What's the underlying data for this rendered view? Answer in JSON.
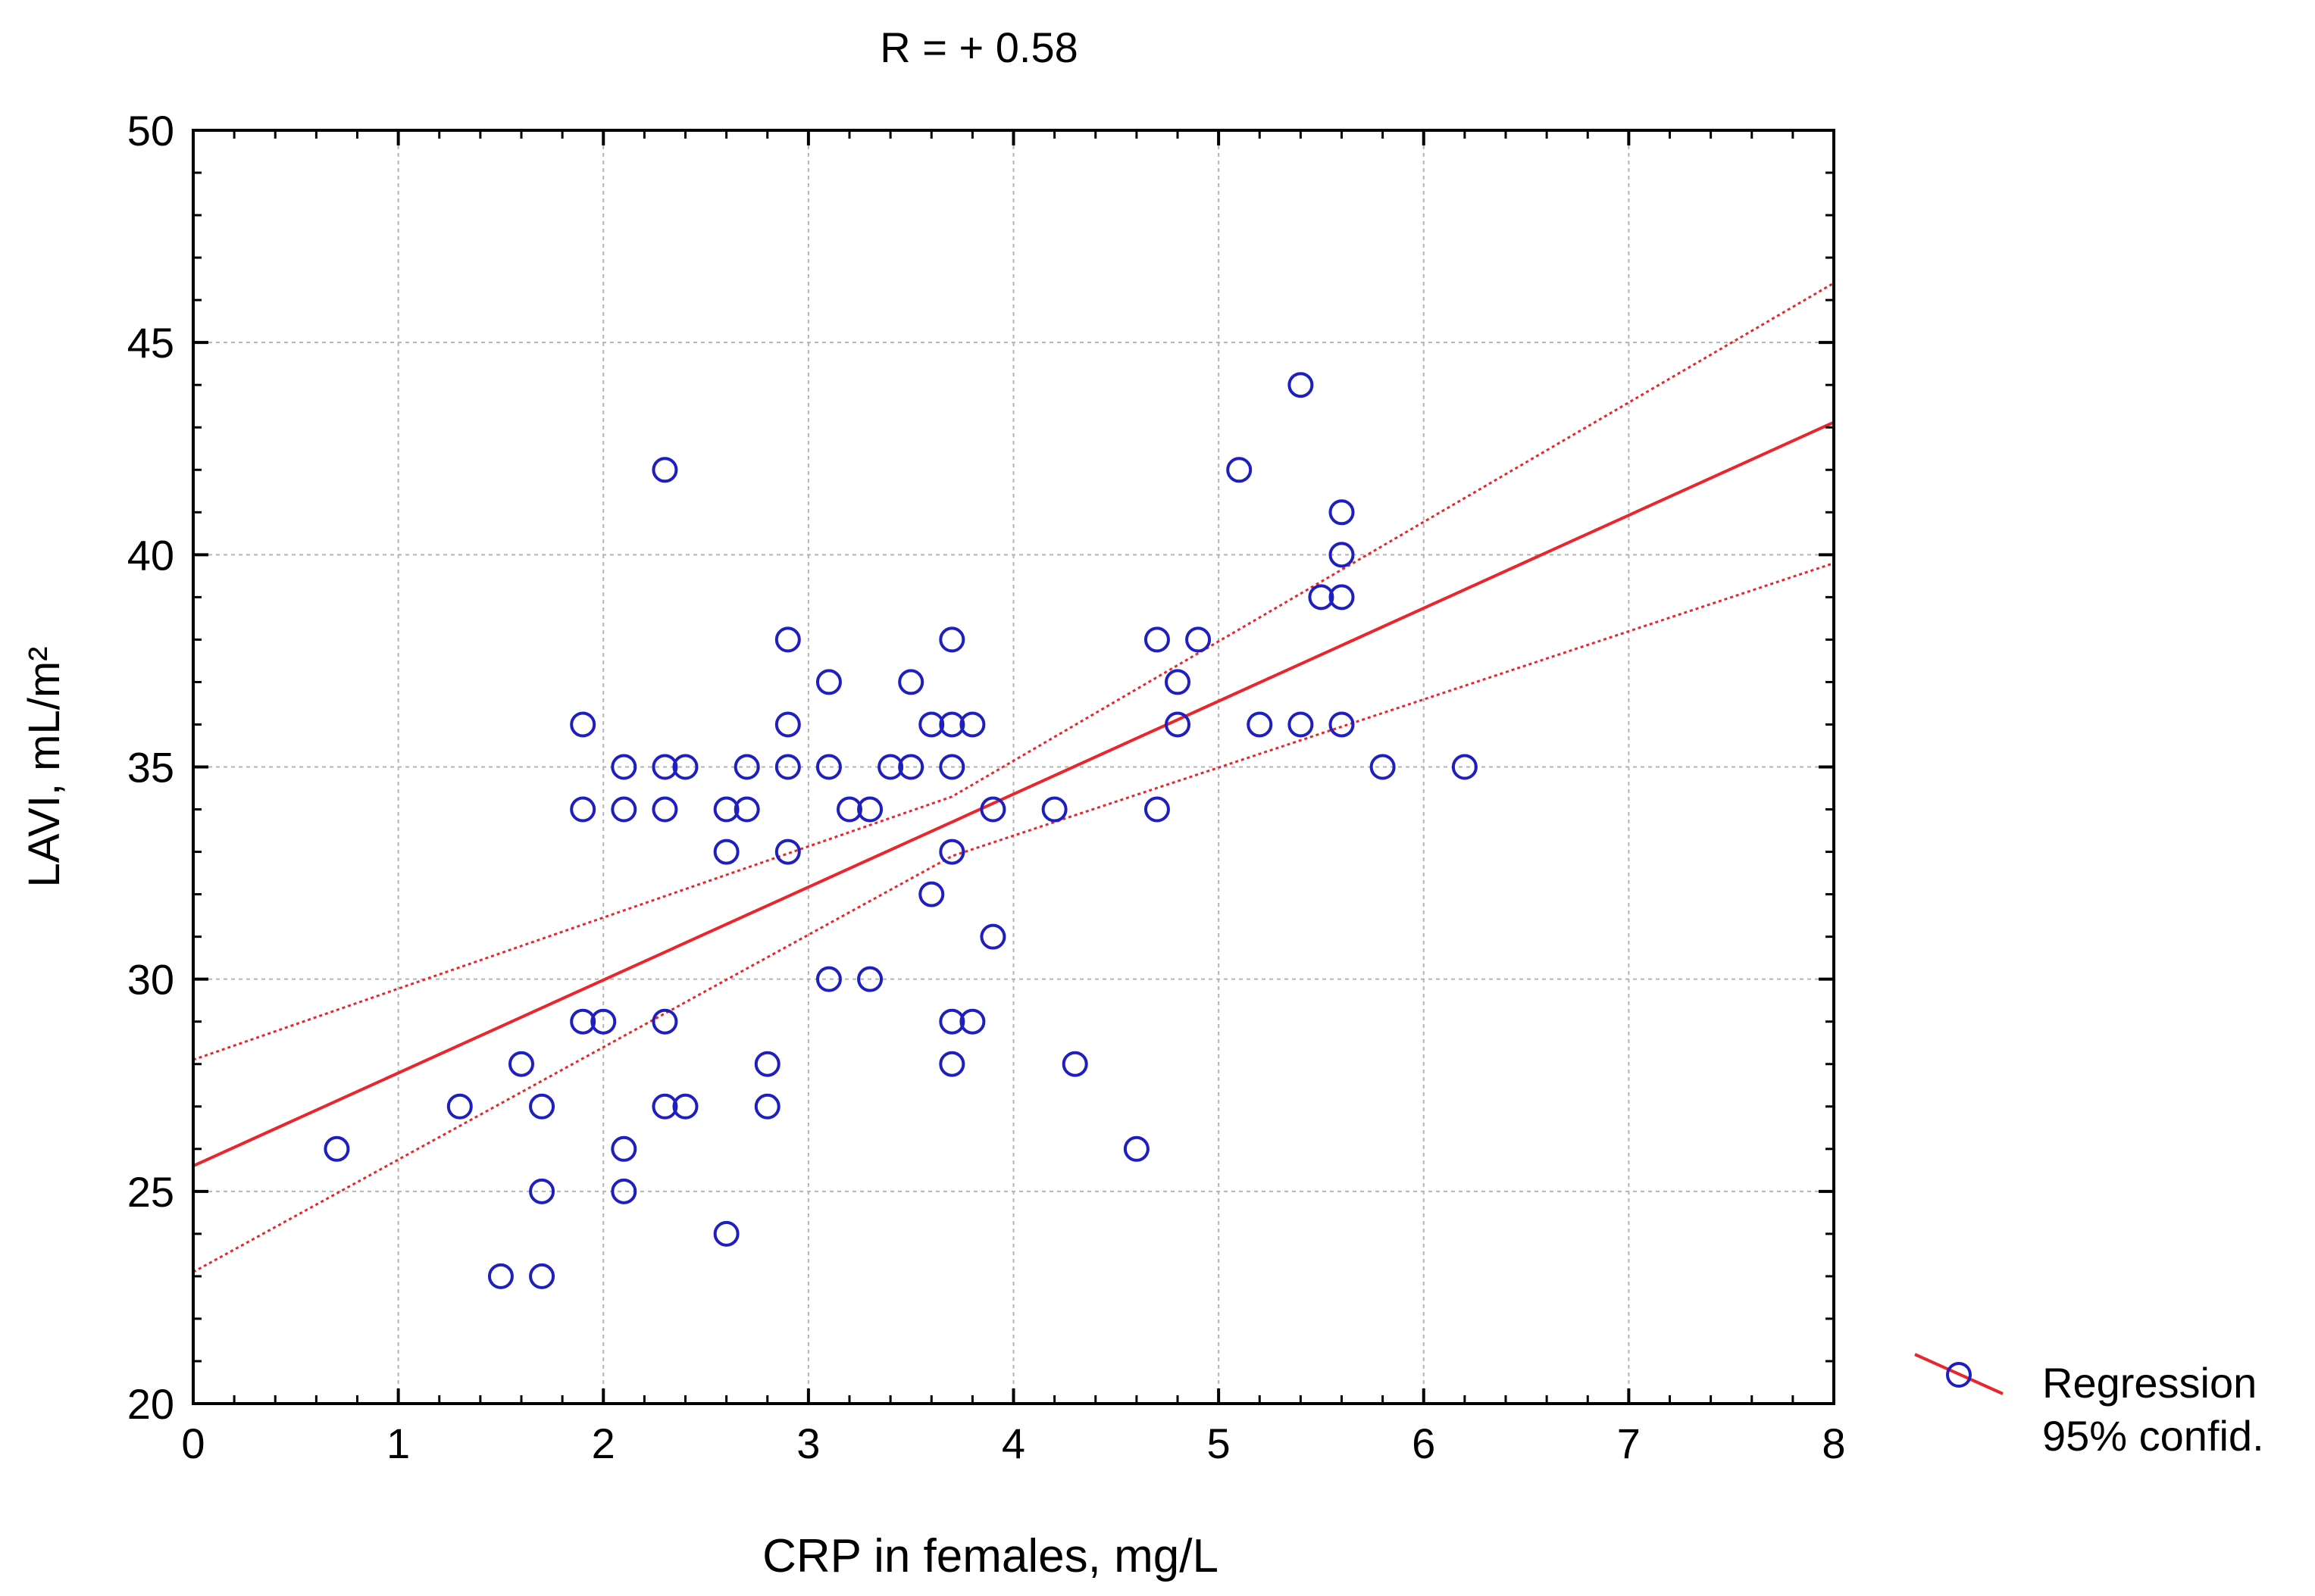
{
  "chart_data": {
    "type": "scatter",
    "title": "R = + 0.58",
    "xlabel": "CRP in females, mg/L",
    "ylabel": "LAVI, mL/m²",
    "xlim": [
      0,
      8
    ],
    "ylim": [
      20,
      50
    ],
    "xticks": [
      "0",
      "1",
      "2",
      "3",
      "4",
      "5",
      "6",
      "7",
      "8"
    ],
    "yticks": [
      "20",
      "25",
      "30",
      "35",
      "40",
      "45",
      "50"
    ],
    "grid": true,
    "legend_position": "right",
    "legend": [
      "Regression",
      "95% confid."
    ],
    "points": [
      {
        "x": 0.7,
        "y": 26
      },
      {
        "x": 1.3,
        "y": 27
      },
      {
        "x": 1.5,
        "y": 23
      },
      {
        "x": 1.6,
        "y": 28
      },
      {
        "x": 1.7,
        "y": 27
      },
      {
        "x": 1.7,
        "y": 25
      },
      {
        "x": 1.7,
        "y": 23
      },
      {
        "x": 1.9,
        "y": 36
      },
      {
        "x": 1.9,
        "y": 34
      },
      {
        "x": 1.9,
        "y": 29
      },
      {
        "x": 2.0,
        "y": 29
      },
      {
        "x": 2.1,
        "y": 35
      },
      {
        "x": 2.1,
        "y": 34
      },
      {
        "x": 2.1,
        "y": 26
      },
      {
        "x": 2.1,
        "y": 25
      },
      {
        "x": 2.3,
        "y": 42
      },
      {
        "x": 2.3,
        "y": 35
      },
      {
        "x": 2.3,
        "y": 34
      },
      {
        "x": 2.3,
        "y": 29
      },
      {
        "x": 2.3,
        "y": 27
      },
      {
        "x": 2.4,
        "y": 35
      },
      {
        "x": 2.4,
        "y": 27
      },
      {
        "x": 2.6,
        "y": 34
      },
      {
        "x": 2.6,
        "y": 33
      },
      {
        "x": 2.6,
        "y": 24
      },
      {
        "x": 2.7,
        "y": 35
      },
      {
        "x": 2.7,
        "y": 34
      },
      {
        "x": 2.8,
        "y": 28
      },
      {
        "x": 2.8,
        "y": 27
      },
      {
        "x": 2.9,
        "y": 38
      },
      {
        "x": 2.9,
        "y": 36
      },
      {
        "x": 2.9,
        "y": 35
      },
      {
        "x": 2.9,
        "y": 33
      },
      {
        "x": 3.1,
        "y": 37
      },
      {
        "x": 3.1,
        "y": 35
      },
      {
        "x": 3.1,
        "y": 30
      },
      {
        "x": 3.2,
        "y": 34
      },
      {
        "x": 3.3,
        "y": 34
      },
      {
        "x": 3.3,
        "y": 30
      },
      {
        "x": 3.4,
        "y": 35
      },
      {
        "x": 3.5,
        "y": 37
      },
      {
        "x": 3.5,
        "y": 35
      },
      {
        "x": 3.6,
        "y": 36
      },
      {
        "x": 3.6,
        "y": 32
      },
      {
        "x": 3.7,
        "y": 38
      },
      {
        "x": 3.7,
        "y": 36
      },
      {
        "x": 3.7,
        "y": 35
      },
      {
        "x": 3.7,
        "y": 33
      },
      {
        "x": 3.7,
        "y": 29
      },
      {
        "x": 3.7,
        "y": 28
      },
      {
        "x": 3.8,
        "y": 36
      },
      {
        "x": 3.8,
        "y": 29
      },
      {
        "x": 3.9,
        "y": 34
      },
      {
        "x": 3.9,
        "y": 31
      },
      {
        "x": 4.2,
        "y": 34
      },
      {
        "x": 4.3,
        "y": 28
      },
      {
        "x": 4.6,
        "y": 26
      },
      {
        "x": 4.7,
        "y": 38
      },
      {
        "x": 4.7,
        "y": 34
      },
      {
        "x": 4.8,
        "y": 37
      },
      {
        "x": 4.8,
        "y": 36
      },
      {
        "x": 4.9,
        "y": 38
      },
      {
        "x": 5.1,
        "y": 42
      },
      {
        "x": 5.2,
        "y": 36
      },
      {
        "x": 5.4,
        "y": 44
      },
      {
        "x": 5.4,
        "y": 36
      },
      {
        "x": 5.5,
        "y": 39
      },
      {
        "x": 5.6,
        "y": 41
      },
      {
        "x": 5.6,
        "y": 40
      },
      {
        "x": 5.6,
        "y": 39
      },
      {
        "x": 5.6,
        "y": 36
      },
      {
        "x": 5.8,
        "y": 35
      },
      {
        "x": 6.2,
        "y": 35
      }
    ],
    "regression": {
      "intercept": 25.6,
      "slope": 2.19
    },
    "confidence_upper": [
      {
        "x": 0,
        "y": 28.1
      },
      {
        "x": 3.7,
        "y": 34.3
      },
      {
        "x": 8,
        "y": 46.4
      }
    ],
    "confidence_lower": [
      {
        "x": 0,
        "y": 23.1
      },
      {
        "x": 3.7,
        "y": 32.9
      },
      {
        "x": 8,
        "y": 39.8
      }
    ],
    "colors": {
      "points": "#1f1fbf",
      "regression": "#e8262b",
      "grid": "#b4b4b4"
    }
  }
}
